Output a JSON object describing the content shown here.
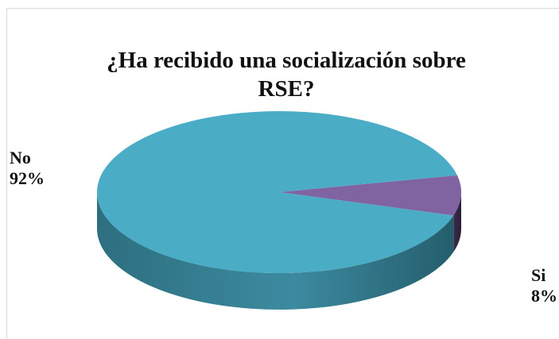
{
  "chart_data": {
    "type": "pie",
    "title": "¿Ha recibido una socialización sobre RSE?",
    "title_lines": [
      "¿Ha recibido una socialización sobre",
      "RSE?"
    ],
    "style": "3d",
    "legend": "none",
    "slices": [
      {
        "label": "Si",
        "value": 8,
        "value_text": "8%",
        "color": "#8064a2"
      },
      {
        "label": "No",
        "value": 92,
        "value_text": "92%",
        "color": "#4bacc6"
      }
    ]
  }
}
